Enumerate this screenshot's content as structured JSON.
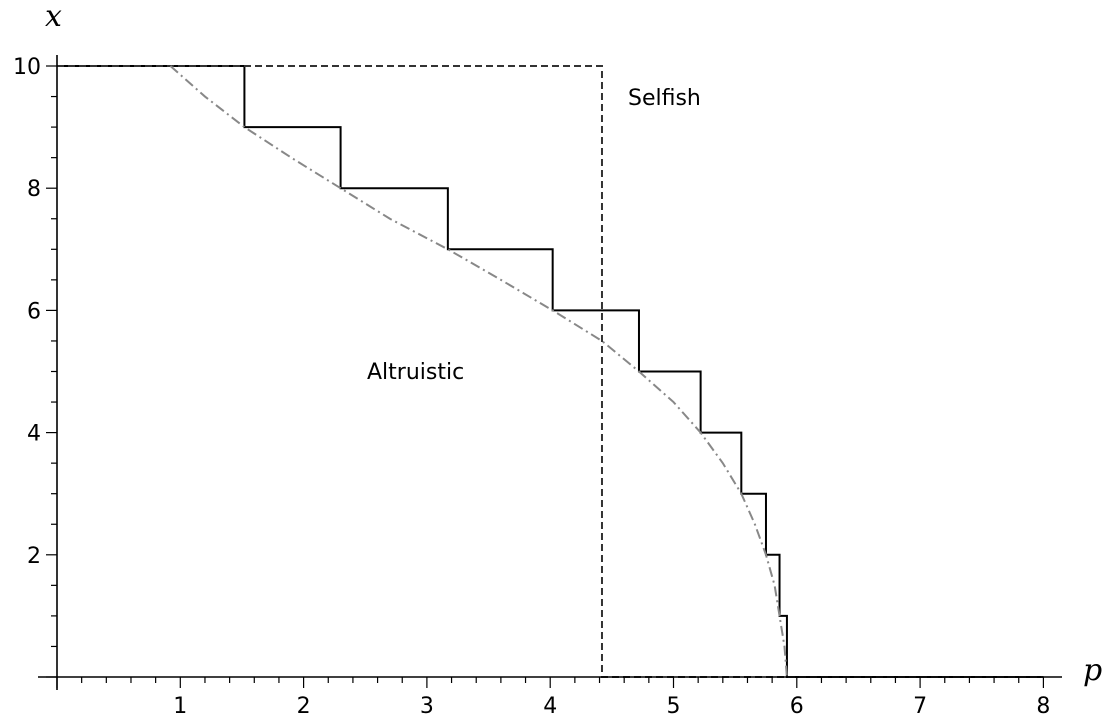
{
  "chart_data": {
    "type": "line",
    "xlabel": "p",
    "ylabel": "x",
    "xlim": [
      0,
      8
    ],
    "ylim": [
      0,
      10
    ],
    "x_ticks": [
      1,
      2,
      3,
      4,
      5,
      6,
      7,
      8
    ],
    "x_tick_labels": [
      "1",
      "2",
      "3",
      "4",
      "5",
      "6",
      "7",
      "8"
    ],
    "y_ticks": [
      2,
      4,
      6,
      8,
      10
    ],
    "y_tick_labels": [
      "2",
      "4",
      "6",
      "8",
      "10"
    ],
    "grid": false,
    "legend": "none",
    "annotations": [
      {
        "text": "Selfish",
        "x": 4.75,
        "y": 9.6
      },
      {
        "text": "Altruistic",
        "x": 2.5,
        "y": 5.0
      }
    ],
    "series": [
      {
        "style": "solid",
        "color": "#000000",
        "x": [
          0,
          1.52,
          1.52,
          2.3,
          2.3,
          3.17,
          3.17,
          4.02,
          4.02,
          4.72,
          4.72,
          5.22,
          5.22,
          5.55,
          5.55,
          5.75,
          5.75,
          5.86,
          5.86,
          5.92,
          5.92,
          8
        ],
        "y": [
          10,
          10,
          9,
          9,
          8,
          8,
          7,
          7,
          6,
          6,
          5,
          5,
          4,
          4,
          3,
          3,
          2,
          2,
          1,
          1,
          0,
          0
        ]
      },
      {
        "style": "dashed",
        "color": "#333333",
        "x": [
          0,
          4.42,
          4.42,
          8
        ],
        "y": [
          10,
          10,
          0,
          0
        ]
      },
      {
        "style": "dashdot",
        "color": "#888888",
        "x": [
          0.92,
          1.2,
          1.52,
          1.9,
          2.3,
          2.7,
          3.17,
          3.6,
          4.02,
          4.42,
          4.72,
          5.0,
          5.22,
          5.4,
          5.55,
          5.66,
          5.75,
          5.82,
          5.86,
          5.9,
          5.92
        ],
        "y": [
          10,
          9.5,
          9.0,
          8.5,
          8.0,
          7.5,
          7.0,
          6.5,
          6.0,
          5.5,
          5.0,
          4.5,
          4.0,
          3.5,
          3.0,
          2.5,
          2.0,
          1.5,
          1.0,
          0.5,
          0.0
        ]
      }
    ]
  }
}
